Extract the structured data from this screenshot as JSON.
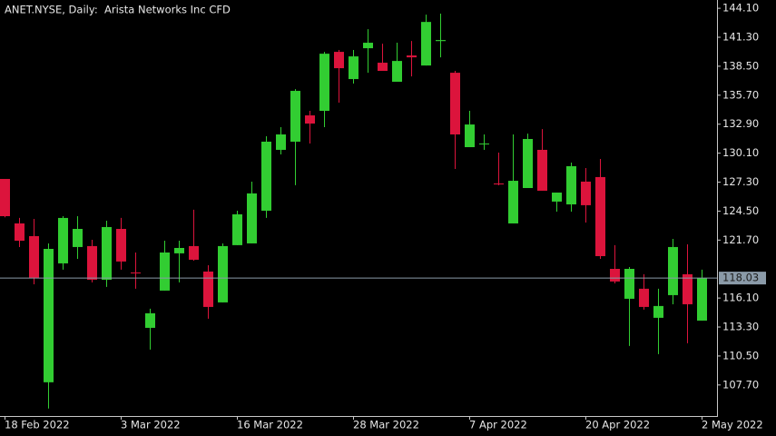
{
  "chart_data": {
    "type": "candlestick",
    "title": "ANET.NYSE, Daily:  Arista Networks Inc CFD",
    "categories": [
      "18 Feb 2022",
      null,
      null,
      null,
      null,
      null,
      null,
      null,
      "3 Mar 2022",
      null,
      null,
      null,
      null,
      null,
      null,
      null,
      "16 Mar 2022",
      null,
      null,
      null,
      null,
      null,
      null,
      null,
      "28 Mar 2022",
      null,
      null,
      null,
      null,
      null,
      null,
      null,
      "7 Apr 2022",
      null,
      null,
      null,
      null,
      null,
      null,
      null,
      "20 Apr 2022",
      null,
      null,
      null,
      null,
      null,
      null,
      null,
      "2 May 2022"
    ],
    "open": [
      127.61,
      123.31,
      122.08,
      107.96,
      119.45,
      121.03,
      121.12,
      117.87,
      122.78,
      118.57,
      113.22,
      116.82,
      120.42,
      121.12,
      118.66,
      115.68,
      121.21,
      121.38,
      124.54,
      130.42,
      131.21,
      133.75,
      134.19,
      139.89,
      137.26,
      140.24,
      138.84,
      137.0,
      139.54,
      138.57,
      140.93,
      137.87,
      130.68,
      131.0,
      127.17,
      123.31,
      126.73,
      130.42,
      125.42,
      125.15,
      127.35,
      127.79,
      118.92,
      116.03,
      117.0,
      114.19,
      116.38,
      118.4,
      113.92
    ],
    "high": [
      127.6,
      123.84,
      123.75,
      121.38,
      124.01,
      124.01,
      121.73,
      123.57,
      123.84,
      120.5,
      115.07,
      121.64,
      121.64,
      124.63,
      119.27,
      121.38,
      124.54,
      127.35,
      131.73,
      132.61,
      136.29,
      134.19,
      139.89,
      140.07,
      140.07,
      142.08,
      140.68,
      140.77,
      140.94,
      143.49,
      143.58,
      138.05,
      134.19,
      131.91,
      130.15,
      131.91,
      131.99,
      132.43,
      126.29,
      129.19,
      128.66,
      129.54,
      121.21,
      119.1,
      118.4,
      117.0,
      121.82,
      121.29,
      118.84
    ],
    "low": [
      123.9,
      121.03,
      117.43,
      105.42,
      118.84,
      119.89,
      117.61,
      117.17,
      118.84,
      117.0,
      111.12,
      116.82,
      117.61,
      119.71,
      114.1,
      115.68,
      121.21,
      121.38,
      123.84,
      129.98,
      127.0,
      131.03,
      132.61,
      134.98,
      136.82,
      137.87,
      138.05,
      137.0,
      137.52,
      138.57,
      139.36,
      128.57,
      130.68,
      130.42,
      126.99,
      123.31,
      126.73,
      126.47,
      124.45,
      124.45,
      123.4,
      119.89,
      117.52,
      111.47,
      114.98,
      110.68,
      115.5,
      111.73,
      113.92
    ],
    "close": [
      124.01,
      121.64,
      118.05,
      120.85,
      123.84,
      122.78,
      117.87,
      122.96,
      119.63,
      118.55,
      114.63,
      120.5,
      120.94,
      119.8,
      115.24,
      121.12,
      124.19,
      126.21,
      131.21,
      131.91,
      136.12,
      132.96,
      139.71,
      138.31,
      139.45,
      140.77,
      138.05,
      139.01,
      139.36,
      142.78,
      141.03,
      131.91,
      132.87,
      131.03,
      127.08,
      127.43,
      131.47,
      126.47,
      126.29,
      128.84,
      125.07,
      120.15,
      117.7,
      118.92,
      115.24,
      115.33,
      121.03,
      115.5,
      118.03
    ],
    "up_color": "#32cd32",
    "down_color": "#dc143c",
    "current_price": 118.03,
    "ylim": [
      104.7,
      144.9
    ],
    "yticks": [
      {
        "value": 107.7,
        "label": "107.70"
      },
      {
        "value": 110.5,
        "label": "110.50"
      },
      {
        "value": 113.3,
        "label": "113.30"
      },
      {
        "value": 116.1,
        "label": "116.10"
      },
      {
        "value": 121.7,
        "label": "121.70"
      },
      {
        "value": 124.5,
        "label": "124.50"
      },
      {
        "value": 127.3,
        "label": "127.30"
      },
      {
        "value": 130.1,
        "label": "130.10"
      },
      {
        "value": 132.9,
        "label": "132.90"
      },
      {
        "value": 135.7,
        "label": "135.70"
      },
      {
        "value": 138.5,
        "label": "138.50"
      },
      {
        "value": 141.3,
        "label": "141.30"
      },
      {
        "value": 144.1,
        "label": "144.10"
      }
    ]
  }
}
